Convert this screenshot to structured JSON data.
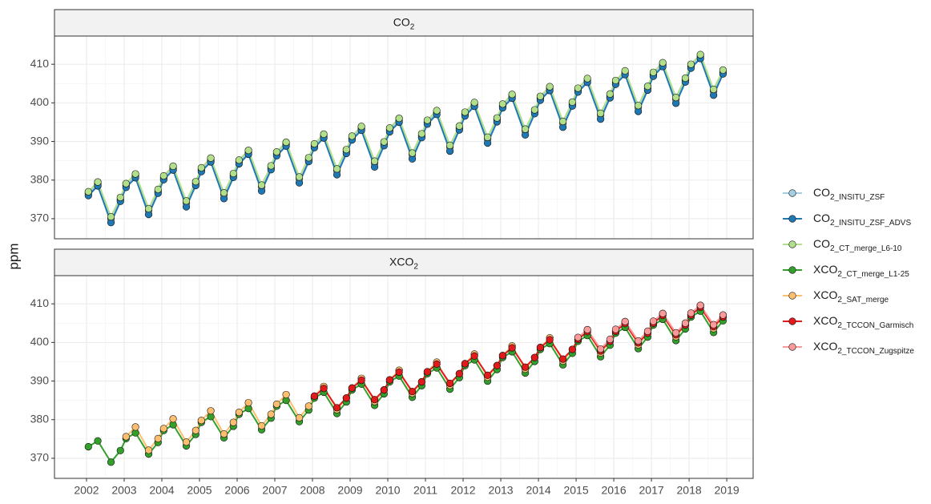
{
  "chart_data": [
    {
      "type": "line",
      "title": "CO2",
      "ylabel": "ppm",
      "x": [
        2002.05,
        2002.3,
        2002.65,
        2002.9,
        2003.05,
        2003.3,
        2003.65,
        2003.9,
        2004.05,
        2004.3,
        2004.65,
        2004.9,
        2005.05,
        2005.3,
        2005.65,
        2005.9,
        2006.05,
        2006.3,
        2006.65,
        2006.9,
        2007.05,
        2007.3,
        2007.65,
        2007.9,
        2008.05,
        2008.3,
        2008.65,
        2008.9,
        2009.05,
        2009.3,
        2009.65,
        2009.9,
        2010.05,
        2010.3,
        2010.65,
        2010.9,
        2011.05,
        2011.3,
        2011.65,
        2011.9,
        2012.05,
        2012.3,
        2012.65,
        2012.9,
        2013.05,
        2013.3,
        2013.65,
        2013.9,
        2014.05,
        2014.3,
        2014.65,
        2014.9,
        2015.05,
        2015.3,
        2015.65,
        2015.9,
        2016.05,
        2016.3,
        2016.65,
        2016.9,
        2017.05,
        2017.3,
        2017.65,
        2017.9,
        2018.05,
        2018.3,
        2018.65,
        2018.9
      ],
      "xlim": [
        2001.15,
        2019.7
      ],
      "ylim": [
        364.8,
        417.3
      ],
      "yticks": [
        370,
        380,
        390,
        400,
        410
      ],
      "grid": true,
      "series": [
        {
          "name": "CO2_INSITU_ZSF",
          "color": "#a6cee3",
          "values": [
            376.5,
            379.0,
            370.0,
            375.0,
            378.6,
            381.1,
            372.1,
            377.1,
            380.6,
            383.1,
            374.1,
            379.1,
            382.7,
            385.2,
            376.2,
            381.2,
            384.7,
            387.2,
            378.2,
            383.2,
            386.8,
            389.3,
            380.3,
            385.3,
            388.9,
            391.4,
            382.4,
            387.4,
            390.9,
            393.4,
            384.4,
            389.4,
            393.0,
            395.5,
            386.5,
            391.5,
            395.0,
            397.5,
            388.5,
            393.5,
            397.1,
            399.6,
            390.6,
            395.6,
            399.2,
            401.7,
            392.7,
            397.7,
            401.2,
            403.7,
            394.7,
            399.7,
            403.3,
            405.8,
            396.8,
            401.8,
            405.3,
            407.8,
            398.8,
            403.8,
            407.4,
            409.9,
            400.9,
            405.9,
            409.5,
            412.0,
            403.0,
            408.0
          ]
        },
        {
          "name": "CO2_INSITU_ZSF_ADVS",
          "color": "#1f78b4",
          "values": [
            376.0,
            378.5,
            369.0,
            374.5,
            378.1,
            380.6,
            371.1,
            376.6,
            380.1,
            382.6,
            373.1,
            378.6,
            382.2,
            384.7,
            375.2,
            380.7,
            384.2,
            386.7,
            377.2,
            382.7,
            386.3,
            388.8,
            379.3,
            384.8,
            388.4,
            390.9,
            381.4,
            386.9,
            390.4,
            392.9,
            383.4,
            388.9,
            392.5,
            395.0,
            385.5,
            391.0,
            394.5,
            397.0,
            387.5,
            393.0,
            396.6,
            399.1,
            389.6,
            395.1,
            398.7,
            401.2,
            391.7,
            397.2,
            400.7,
            403.2,
            393.7,
            399.2,
            402.8,
            405.3,
            395.8,
            401.3,
            404.8,
            407.3,
            397.8,
            403.3,
            406.9,
            409.4,
            399.9,
            405.4,
            409.0,
            411.5,
            402.0,
            407.5
          ]
        },
        {
          "name": "CO2_CT_merge_L6-10",
          "color": "#b2df8a",
          "values": [
            377.0,
            379.5,
            370.5,
            375.5,
            379.1,
            381.6,
            372.6,
            377.6,
            381.1,
            383.6,
            374.6,
            379.6,
            383.2,
            385.7,
            376.7,
            381.7,
            385.2,
            387.7,
            378.7,
            383.7,
            387.3,
            389.8,
            380.8,
            385.8,
            389.4,
            391.9,
            382.9,
            387.9,
            391.4,
            393.9,
            384.9,
            389.9,
            393.5,
            396.0,
            387.0,
            392.0,
            395.5,
            398.0,
            389.0,
            394.0,
            397.6,
            400.1,
            391.1,
            396.1,
            399.7,
            402.2,
            393.2,
            398.2,
            401.7,
            404.2,
            395.2,
            400.2,
            403.8,
            406.3,
            397.3,
            402.3,
            405.8,
            408.3,
            399.3,
            404.3,
            407.9,
            410.4,
            401.4,
            406.4,
            410.0,
            412.5,
            403.5,
            408.5
          ]
        }
      ]
    },
    {
      "type": "line",
      "title": "XCO2",
      "x": [
        2002.05,
        2002.3,
        2002.65,
        2002.9,
        2003.05,
        2003.3,
        2003.65,
        2003.9,
        2004.05,
        2004.3,
        2004.65,
        2004.9,
        2005.05,
        2005.3,
        2005.65,
        2005.9,
        2006.05,
        2006.3,
        2006.65,
        2006.9,
        2007.05,
        2007.3,
        2007.65,
        2007.9,
        2008.05,
        2008.3,
        2008.65,
        2008.9,
        2009.05,
        2009.3,
        2009.65,
        2009.9,
        2010.05,
        2010.3,
        2010.65,
        2010.9,
        2011.05,
        2011.3,
        2011.65,
        2011.9,
        2012.05,
        2012.3,
        2012.65,
        2012.9,
        2013.05,
        2013.3,
        2013.65,
        2013.9,
        2014.05,
        2014.3,
        2014.65,
        2014.9,
        2015.05,
        2015.3,
        2015.65,
        2015.9,
        2016.05,
        2016.3,
        2016.65,
        2016.9,
        2017.05,
        2017.3,
        2017.65,
        2017.9,
        2018.05,
        2018.3,
        2018.65,
        2018.9
      ],
      "xlim": [
        2001.15,
        2019.7
      ],
      "xticks": [
        2002,
        2003,
        2004,
        2005,
        2006,
        2007,
        2008,
        2009,
        2010,
        2011,
        2012,
        2013,
        2014,
        2015,
        2016,
        2017,
        2018,
        2019
      ],
      "ylim": [
        364.8,
        417.3
      ],
      "yticks": [
        370,
        380,
        390,
        400,
        410
      ],
      "grid": true,
      "series": [
        {
          "name": "XCO2_CT_merge_L1-25",
          "color": "#33a02c",
          "values": [
            373.0,
            374.5,
            369.0,
            372.0,
            375.1,
            376.6,
            371.1,
            374.1,
            377.2,
            378.7,
            373.2,
            376.2,
            379.3,
            380.8,
            375.3,
            378.3,
            381.4,
            382.9,
            377.4,
            380.4,
            383.5,
            385.0,
            379.5,
            382.5,
            385.6,
            387.1,
            381.6,
            384.6,
            387.7,
            389.2,
            383.7,
            386.7,
            389.8,
            391.3,
            385.8,
            388.8,
            391.9,
            393.4,
            387.9,
            390.9,
            394.0,
            395.5,
            390.0,
            393.0,
            396.1,
            397.6,
            392.1,
            395.1,
            398.2,
            399.7,
            394.2,
            397.2,
            400.3,
            401.8,
            396.3,
            399.3,
            402.4,
            403.9,
            398.4,
            401.4,
            404.5,
            406.0,
            400.5,
            403.5,
            406.6,
            408.1,
            402.6,
            405.6
          ]
        },
        {
          "name": "XCO2_SAT_merge",
          "color": "#fdbf6f",
          "values": [
            null,
            null,
            null,
            null,
            375.6,
            378.1,
            372.1,
            375.1,
            377.7,
            380.2,
            374.2,
            377.2,
            379.8,
            382.3,
            376.3,
            379.3,
            381.9,
            384.4,
            378.4,
            381.4,
            384.0,
            386.5,
            380.5,
            383.5,
            386.1,
            388.6,
            382.6,
            385.6,
            388.2,
            390.7,
            384.7,
            387.7,
            390.3,
            392.8,
            386.8,
            389.8,
            392.4,
            394.9,
            388.9,
            391.9,
            394.5,
            397.0,
            391.0,
            394.0,
            396.6,
            399.1,
            393.1,
            396.1,
            398.7,
            401.2,
            395.2,
            398.2,
            400.8,
            403.3,
            397.3,
            400.3,
            402.9,
            405.4,
            399.4,
            402.4,
            405.0,
            407.5,
            401.5,
            404.5,
            407.1,
            409.6,
            403.6,
            406.6
          ]
        },
        {
          "name": "XCO2_TCCON_Garmisch",
          "color": "#e31a1c",
          "values": [
            null,
            null,
            null,
            null,
            null,
            null,
            null,
            null,
            null,
            null,
            null,
            null,
            null,
            null,
            null,
            null,
            null,
            null,
            null,
            null,
            null,
            null,
            null,
            null,
            386.1,
            388.1,
            383.1,
            385.6,
            388.2,
            390.2,
            385.2,
            387.7,
            390.3,
            392.3,
            387.3,
            389.8,
            392.4,
            394.4,
            389.4,
            391.9,
            394.5,
            396.5,
            391.5,
            394.0,
            396.6,
            398.6,
            393.6,
            396.1,
            398.7,
            400.7,
            395.7,
            398.2,
            400.8,
            402.8,
            397.8,
            400.3,
            402.9,
            404.9,
            399.9,
            402.4,
            405.0,
            407.0,
            402.0,
            404.5,
            407.1,
            409.1,
            404.1,
            406.6
          ]
        },
        {
          "name": "XCO2_TCCON_Zugspitze",
          "color": "#fb9a99",
          "values": [
            null,
            null,
            null,
            null,
            null,
            null,
            null,
            null,
            null,
            null,
            null,
            null,
            null,
            null,
            null,
            null,
            null,
            null,
            null,
            null,
            null,
            null,
            null,
            null,
            null,
            null,
            null,
            null,
            null,
            null,
            null,
            null,
            null,
            null,
            null,
            null,
            null,
            null,
            null,
            null,
            null,
            null,
            null,
            null,
            null,
            null,
            null,
            null,
            null,
            null,
            null,
            null,
            401.3,
            403.3,
            398.3,
            400.8,
            403.4,
            405.4,
            400.4,
            402.9,
            405.5,
            407.5,
            402.5,
            405.0,
            407.6,
            409.6,
            404.6,
            407.1
          ]
        }
      ]
    }
  ]
}
